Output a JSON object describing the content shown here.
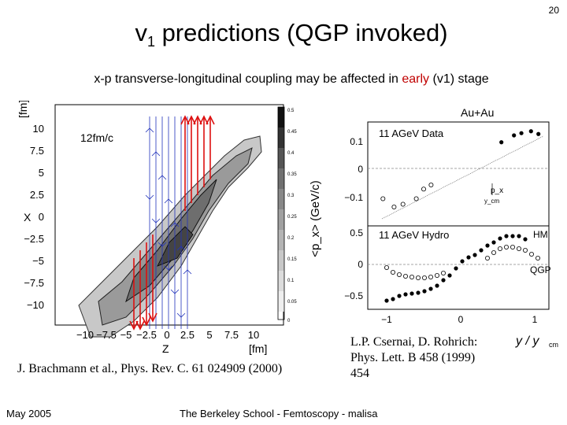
{
  "page_number": "20",
  "title": {
    "main": "v",
    "sub": "1",
    "rest": " predictions (QGP invoked)"
  },
  "subtitle": {
    "before": "x-p transverse-longitudinal coupling may be affected in ",
    "highlight": "early",
    "after": " (v1) stage"
  },
  "left_figure": {
    "time_label": "12fm/c",
    "y_unit": "[fm]",
    "y_axis_label": "X",
    "x_axis_label": "Z",
    "x_unit": "[fm]",
    "y_ticks": [
      "10",
      "7.5",
      "5",
      "2.5",
      "0",
      "−2.5",
      "−5",
      "−7.5",
      "−10"
    ],
    "x_ticks": [
      "−10",
      "−7.5",
      "−5",
      "−2.5",
      "0",
      "2.5",
      "5",
      "7.5",
      "10"
    ],
    "colorbar_ticks": [
      "0.5",
      "0.45",
      "0.4",
      "0.35",
      "0.3",
      "0.25",
      "0.2",
      "0.15",
      "0.1",
      "0.05",
      "0"
    ],
    "colorbar_label": "<p_x> (GeV/c)"
  },
  "right_figure": {
    "top_label": "Au+Au",
    "upper_panel": {
      "label": "11 AGeV Data",
      "y_ticks": [
        "0.1",
        "0",
        "−0.1"
      ],
      "annotation": "p_x",
      "annotation_sub": "y_cm",
      "filled_points_x": [
        0.55,
        0.72,
        0.82,
        0.95,
        1.05
      ],
      "filled_points_y": [
        0.095,
        0.12,
        0.128,
        0.135,
        0.125
      ],
      "open_points_x": [
        -1.05,
        -0.9,
        -0.78,
        -0.6,
        -0.5,
        -0.4
      ],
      "open_points_y": [
        -0.11,
        -0.14,
        -0.13,
        -0.11,
        -0.075,
        -0.06
      ]
    },
    "lower_panel": {
      "label": "11 AGeV Hydro",
      "y_ticks": [
        "0.5",
        "0",
        "−0.5"
      ],
      "x_ticks": [
        "−1",
        "0",
        "1"
      ],
      "label_hm": "HM",
      "label_qgp": "QGP",
      "x_axis_label": "y / y",
      "x_axis_label_sub": "cm"
    }
  },
  "citation_left": "J. Brachmann et al., Phys. Rev. C. 61 024909 (2000)",
  "citation_right_line1": "L.P. Csernai, D. Rohrich:",
  "citation_right_line2": "Phys. Lett. B 458 (1999)",
  "citation_right_line3": "454",
  "footer_date": "May 2005",
  "footer_center": "The Berkeley School - Femtoscopy - malisa"
}
